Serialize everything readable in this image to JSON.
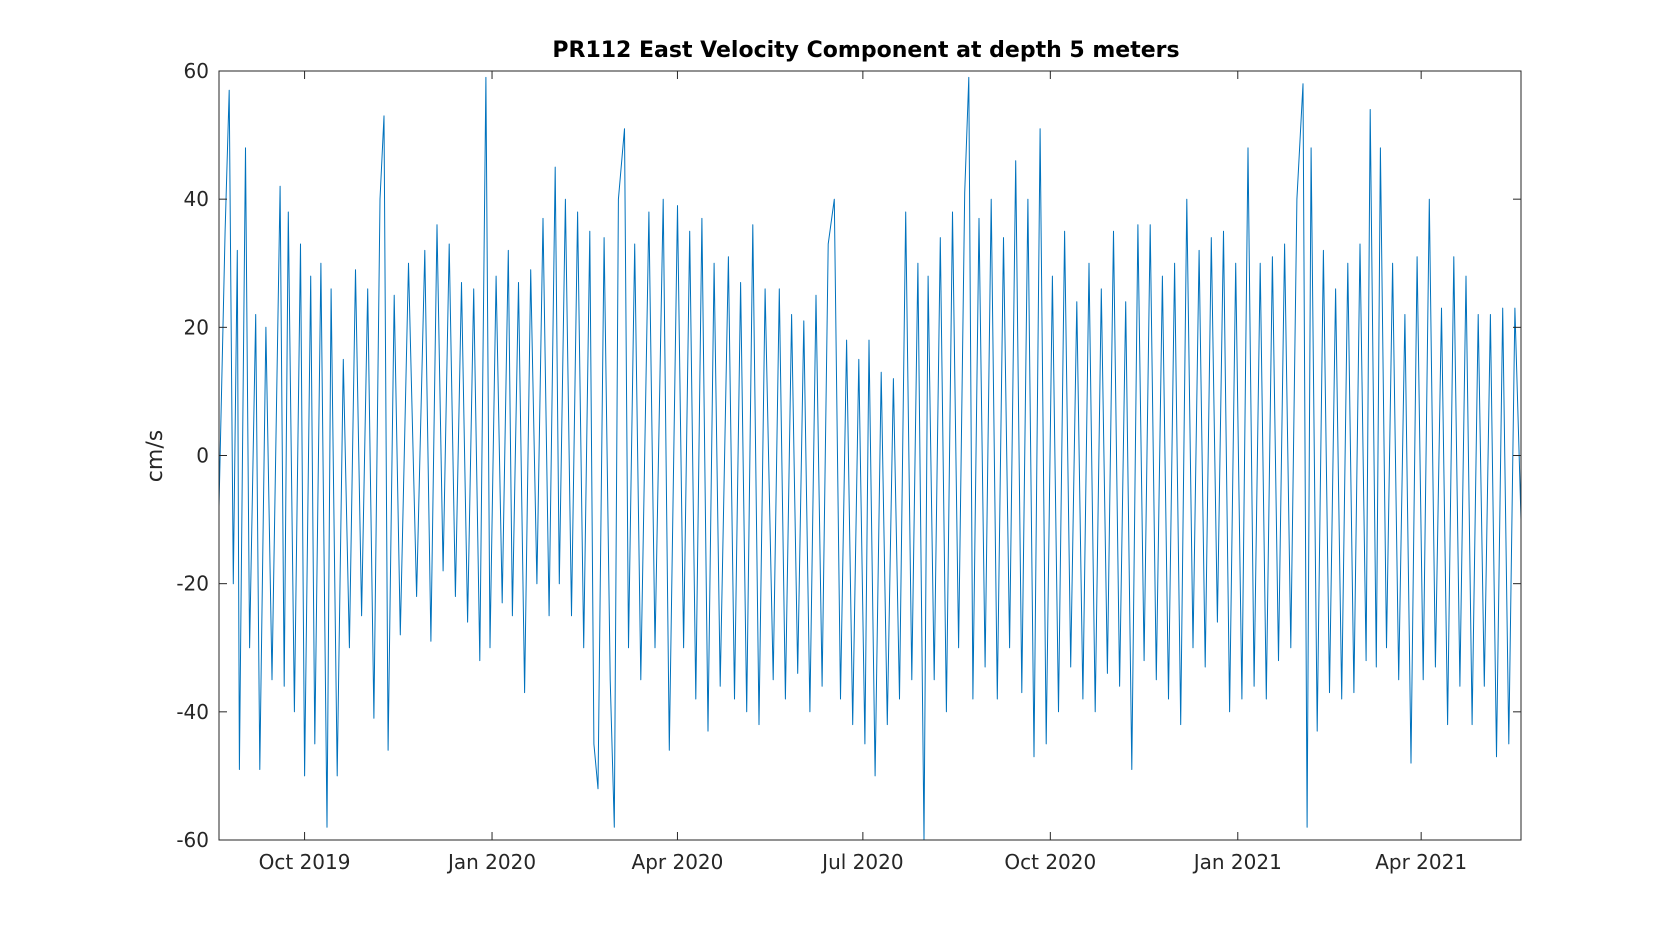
{
  "chart_data": {
    "type": "line",
    "title": "PR112 East Velocity Component at depth 5 meters",
    "ylabel": "cm/s",
    "ylim": [
      -60,
      60
    ],
    "xlim": [
      "2019-08-20",
      "2021-05-20"
    ],
    "yticks": [
      -60,
      -40,
      -20,
      0,
      20,
      40,
      60
    ],
    "xticks": [
      {
        "date": "2019-10-01",
        "label": "Oct 2019"
      },
      {
        "date": "2020-01-01",
        "label": "Jan 2020"
      },
      {
        "date": "2020-04-01",
        "label": "Apr 2020"
      },
      {
        "date": "2020-07-01",
        "label": "Jul 2020"
      },
      {
        "date": "2020-10-01",
        "label": "Oct 2020"
      },
      {
        "date": "2021-01-01",
        "label": "Jan 2021"
      },
      {
        "date": "2021-04-01",
        "label": "Apr 2021"
      }
    ],
    "grid": false,
    "series": [
      {
        "color": "#0072BD",
        "points": [
          [
            "2019-08-20",
            -8
          ],
          [
            "2019-08-23",
            35
          ],
          [
            "2019-08-25",
            57
          ],
          [
            "2019-08-27",
            -20
          ],
          [
            "2019-08-29",
            32
          ],
          [
            "2019-08-30",
            -49
          ],
          [
            "2019-09-02",
            48
          ],
          [
            "2019-09-04",
            -30
          ],
          [
            "2019-09-07",
            22
          ],
          [
            "2019-09-09",
            -49
          ],
          [
            "2019-09-12",
            20
          ],
          [
            "2019-09-15",
            -35
          ],
          [
            "2019-09-19",
            42
          ],
          [
            "2019-09-21",
            -36
          ],
          [
            "2019-09-23",
            38
          ],
          [
            "2019-09-26",
            -40
          ],
          [
            "2019-09-29",
            33
          ],
          [
            "2019-10-01",
            -50
          ],
          [
            "2019-10-04",
            28
          ],
          [
            "2019-10-06",
            -45
          ],
          [
            "2019-10-09",
            30
          ],
          [
            "2019-10-12",
            -58
          ],
          [
            "2019-10-14",
            26
          ],
          [
            "2019-10-17",
            -50
          ],
          [
            "2019-10-20",
            15
          ],
          [
            "2019-10-23",
            -30
          ],
          [
            "2019-10-26",
            29
          ],
          [
            "2019-10-29",
            -25
          ],
          [
            "2019-11-01",
            26
          ],
          [
            "2019-11-04",
            -41
          ],
          [
            "2019-11-07",
            40
          ],
          [
            "2019-11-09",
            53
          ],
          [
            "2019-11-11",
            -46
          ],
          [
            "2019-11-14",
            25
          ],
          [
            "2019-11-17",
            -28
          ],
          [
            "2019-11-21",
            30
          ],
          [
            "2019-11-25",
            -22
          ],
          [
            "2019-11-29",
            32
          ],
          [
            "2019-12-02",
            -29
          ],
          [
            "2019-12-05",
            36
          ],
          [
            "2019-12-08",
            -18
          ],
          [
            "2019-12-11",
            33
          ],
          [
            "2019-12-14",
            -22
          ],
          [
            "2019-12-17",
            27
          ],
          [
            "2019-12-20",
            -26
          ],
          [
            "2019-12-23",
            26
          ],
          [
            "2019-12-26",
            -32
          ],
          [
            "2019-12-29",
            59
          ],
          [
            "2019-12-31",
            -30
          ],
          [
            "2020-01-03",
            28
          ],
          [
            "2020-01-06",
            -23
          ],
          [
            "2020-01-09",
            32
          ],
          [
            "2020-01-11",
            -25
          ],
          [
            "2020-01-14",
            27
          ],
          [
            "2020-01-17",
            -37
          ],
          [
            "2020-01-20",
            29
          ],
          [
            "2020-01-23",
            -20
          ],
          [
            "2020-01-26",
            37
          ],
          [
            "2020-01-29",
            -25
          ],
          [
            "2020-02-01",
            45
          ],
          [
            "2020-02-03",
            -20
          ],
          [
            "2020-02-06",
            40
          ],
          [
            "2020-02-09",
            -25
          ],
          [
            "2020-02-12",
            38
          ],
          [
            "2020-02-15",
            -30
          ],
          [
            "2020-02-18",
            35
          ],
          [
            "2020-02-20",
            -45
          ],
          [
            "2020-02-22",
            -52
          ],
          [
            "2020-02-25",
            34
          ],
          [
            "2020-02-28",
            -35
          ],
          [
            "2020-03-01",
            -58
          ],
          [
            "2020-03-03",
            40
          ],
          [
            "2020-03-06",
            51
          ],
          [
            "2020-03-08",
            -30
          ],
          [
            "2020-03-11",
            33
          ],
          [
            "2020-03-14",
            -35
          ],
          [
            "2020-03-18",
            38
          ],
          [
            "2020-03-21",
            -30
          ],
          [
            "2020-03-25",
            40
          ],
          [
            "2020-03-28",
            -46
          ],
          [
            "2020-04-01",
            39
          ],
          [
            "2020-04-04",
            -30
          ],
          [
            "2020-04-07",
            35
          ],
          [
            "2020-04-10",
            -38
          ],
          [
            "2020-04-13",
            37
          ],
          [
            "2020-04-16",
            -43
          ],
          [
            "2020-04-19",
            30
          ],
          [
            "2020-04-22",
            -36
          ],
          [
            "2020-04-26",
            31
          ],
          [
            "2020-04-29",
            -38
          ],
          [
            "2020-05-02",
            27
          ],
          [
            "2020-05-05",
            -40
          ],
          [
            "2020-05-08",
            36
          ],
          [
            "2020-05-11",
            -42
          ],
          [
            "2020-05-14",
            26
          ],
          [
            "2020-05-18",
            -35
          ],
          [
            "2020-05-21",
            26
          ],
          [
            "2020-05-24",
            -38
          ],
          [
            "2020-05-27",
            22
          ],
          [
            "2020-05-30",
            -34
          ],
          [
            "2020-06-02",
            21
          ],
          [
            "2020-06-05",
            -40
          ],
          [
            "2020-06-08",
            25
          ],
          [
            "2020-06-11",
            -36
          ],
          [
            "2020-06-14",
            33
          ],
          [
            "2020-06-17",
            40
          ],
          [
            "2020-06-20",
            -38
          ],
          [
            "2020-06-23",
            18
          ],
          [
            "2020-06-26",
            -42
          ],
          [
            "2020-06-29",
            15
          ],
          [
            "2020-07-02",
            -45
          ],
          [
            "2020-07-04",
            18
          ],
          [
            "2020-07-07",
            -50
          ],
          [
            "2020-07-10",
            13
          ],
          [
            "2020-07-13",
            -42
          ],
          [
            "2020-07-16",
            12
          ],
          [
            "2020-07-19",
            -38
          ],
          [
            "2020-07-22",
            38
          ],
          [
            "2020-07-25",
            -35
          ],
          [
            "2020-07-28",
            30
          ],
          [
            "2020-07-31",
            -60
          ],
          [
            "2020-08-02",
            28
          ],
          [
            "2020-08-05",
            -35
          ],
          [
            "2020-08-08",
            34
          ],
          [
            "2020-08-11",
            -40
          ],
          [
            "2020-08-14",
            38
          ],
          [
            "2020-08-17",
            -30
          ],
          [
            "2020-08-20",
            41
          ],
          [
            "2020-08-22",
            59
          ],
          [
            "2020-08-24",
            -38
          ],
          [
            "2020-08-27",
            37
          ],
          [
            "2020-08-30",
            -33
          ],
          [
            "2020-09-02",
            40
          ],
          [
            "2020-09-05",
            -38
          ],
          [
            "2020-09-08",
            34
          ],
          [
            "2020-09-11",
            -30
          ],
          [
            "2020-09-14",
            46
          ],
          [
            "2020-09-17",
            -37
          ],
          [
            "2020-09-20",
            40
          ],
          [
            "2020-09-23",
            -47
          ],
          [
            "2020-09-26",
            51
          ],
          [
            "2020-09-29",
            -45
          ],
          [
            "2020-10-02",
            28
          ],
          [
            "2020-10-05",
            -40
          ],
          [
            "2020-10-08",
            35
          ],
          [
            "2020-10-11",
            -33
          ],
          [
            "2020-10-14",
            24
          ],
          [
            "2020-10-17",
            -38
          ],
          [
            "2020-10-20",
            30
          ],
          [
            "2020-10-23",
            -40
          ],
          [
            "2020-10-26",
            26
          ],
          [
            "2020-10-29",
            -34
          ],
          [
            "2020-11-01",
            35
          ],
          [
            "2020-11-04",
            -36
          ],
          [
            "2020-11-07",
            24
          ],
          [
            "2020-11-10",
            -49
          ],
          [
            "2020-11-13",
            36
          ],
          [
            "2020-11-16",
            -32
          ],
          [
            "2020-11-19",
            36
          ],
          [
            "2020-11-22",
            -35
          ],
          [
            "2020-11-25",
            28
          ],
          [
            "2020-11-28",
            -38
          ],
          [
            "2020-12-01",
            30
          ],
          [
            "2020-12-04",
            -42
          ],
          [
            "2020-12-07",
            40
          ],
          [
            "2020-12-10",
            -30
          ],
          [
            "2020-12-13",
            32
          ],
          [
            "2020-12-16",
            -33
          ],
          [
            "2020-12-19",
            34
          ],
          [
            "2020-12-22",
            -26
          ],
          [
            "2020-12-25",
            35
          ],
          [
            "2020-12-28",
            -40
          ],
          [
            "2020-12-31",
            30
          ],
          [
            "2021-01-03",
            -38
          ],
          [
            "2021-01-06",
            48
          ],
          [
            "2021-01-09",
            -36
          ],
          [
            "2021-01-12",
            30
          ],
          [
            "2021-01-15",
            -38
          ],
          [
            "2021-01-18",
            31
          ],
          [
            "2021-01-21",
            -32
          ],
          [
            "2021-01-24",
            33
          ],
          [
            "2021-01-27",
            -30
          ],
          [
            "2021-01-30",
            40
          ],
          [
            "2021-02-02",
            58
          ],
          [
            "2021-02-04",
            -58
          ],
          [
            "2021-02-06",
            48
          ],
          [
            "2021-02-09",
            -43
          ],
          [
            "2021-02-12",
            32
          ],
          [
            "2021-02-15",
            -37
          ],
          [
            "2021-02-18",
            26
          ],
          [
            "2021-02-21",
            -38
          ],
          [
            "2021-02-24",
            30
          ],
          [
            "2021-02-27",
            -37
          ],
          [
            "2021-03-02",
            33
          ],
          [
            "2021-03-05",
            -32
          ],
          [
            "2021-03-07",
            54
          ],
          [
            "2021-03-10",
            -33
          ],
          [
            "2021-03-12",
            48
          ],
          [
            "2021-03-15",
            -30
          ],
          [
            "2021-03-18",
            30
          ],
          [
            "2021-03-21",
            -35
          ],
          [
            "2021-03-24",
            22
          ],
          [
            "2021-03-27",
            -48
          ],
          [
            "2021-03-30",
            31
          ],
          [
            "2021-04-02",
            -35
          ],
          [
            "2021-04-05",
            40
          ],
          [
            "2021-04-08",
            -33
          ],
          [
            "2021-04-11",
            23
          ],
          [
            "2021-04-14",
            -42
          ],
          [
            "2021-04-17",
            31
          ],
          [
            "2021-04-20",
            -36
          ],
          [
            "2021-04-23",
            28
          ],
          [
            "2021-04-26",
            -42
          ],
          [
            "2021-04-29",
            22
          ],
          [
            "2021-05-02",
            -36
          ],
          [
            "2021-05-05",
            22
          ],
          [
            "2021-05-08",
            -47
          ],
          [
            "2021-05-11",
            23
          ],
          [
            "2021-05-14",
            -45
          ],
          [
            "2021-05-17",
            23
          ],
          [
            "2021-05-20",
            -10
          ]
        ]
      }
    ]
  }
}
